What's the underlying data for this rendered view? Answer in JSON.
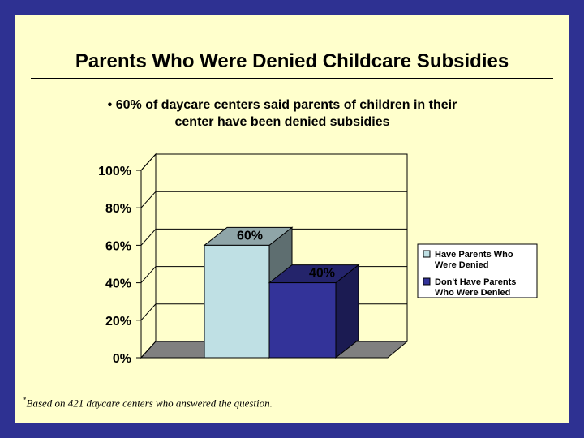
{
  "slide": {
    "title": "Parents Who Were Denied Childcare Subsidies",
    "subtitle_line1": "• 60% of daycare centers said parents of children in their",
    "subtitle_line2": "center have been denied subsidies",
    "footnote_marker": "*",
    "footnote_text": "Based on 421 daycare centers who answered the question."
  },
  "colors": {
    "background": "#2E3192",
    "slide": "#FFFFCC",
    "series1_front": "#BFE0E4",
    "series1_top": "#8FA5A8",
    "series1_side": "#5E6E70",
    "series2_front": "#333399",
    "series2_top": "#24246B",
    "series2_side": "#1B1B52",
    "floor": "#808080"
  },
  "chart_data": {
    "type": "bar",
    "style": "3d-column",
    "title": "",
    "xlabel": "",
    "ylabel": "",
    "ylim": [
      0,
      100
    ],
    "yticks": [
      "0%",
      "20%",
      "40%",
      "60%",
      "80%",
      "100%"
    ],
    "ytick_values": [
      0,
      20,
      40,
      60,
      80,
      100
    ],
    "categories": [
      ""
    ],
    "series": [
      {
        "name": "Have Parents Who Were Denied",
        "values": [
          60
        ],
        "label": "60%",
        "legend_lines": [
          "Have Parents Who",
          "Were Denied"
        ]
      },
      {
        "name": "Don't Have Parents Who Were Denied",
        "values": [
          40
        ],
        "label": "40%",
        "legend_lines": [
          "Don't Have Parents",
          "Who Were Denied"
        ]
      }
    ],
    "legend_position": "right",
    "grid": true
  }
}
